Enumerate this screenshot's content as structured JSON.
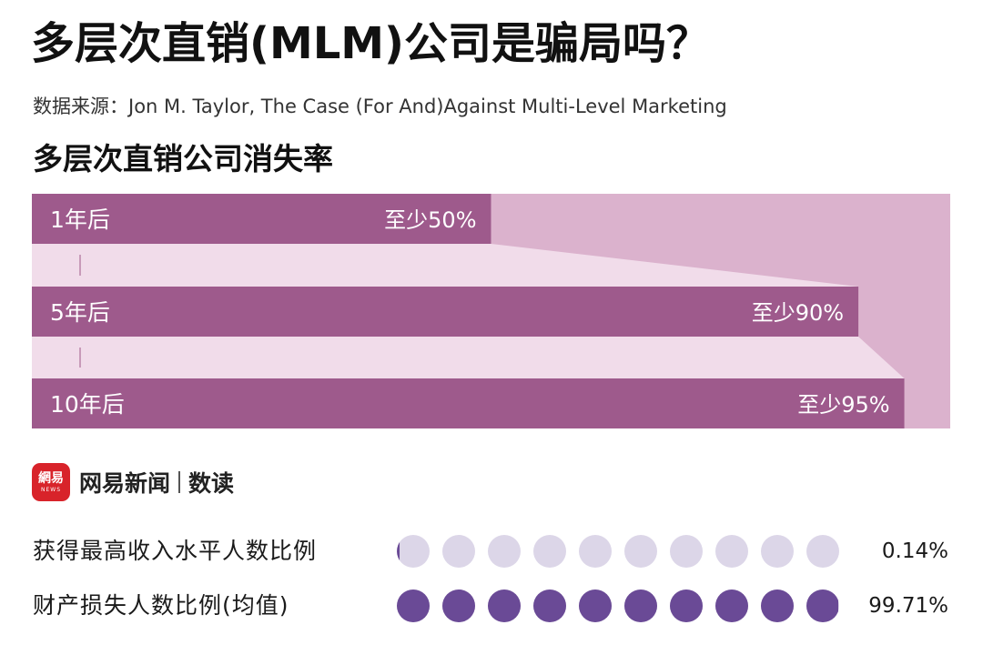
{
  "header": {
    "title": "多层次直销(MLM)公司是骗局吗？",
    "source": "数据来源：Jon M. Taylor, The Case (For And)Against Multi-Level Marketing"
  },
  "chart_data": {
    "type": "bar",
    "title": "多层次直销公司消失率",
    "categories": [
      "1年后",
      "5年后",
      "10年后"
    ],
    "values": [
      50,
      90,
      95
    ],
    "value_labels": [
      "至少50%",
      "至少90%",
      "至少95%"
    ],
    "unit": "%",
    "ylim": [
      0,
      100
    ],
    "colors": {
      "bar": "#9e5a8c",
      "track": "#dbb2cd",
      "connector": "#f1dcea",
      "connector_tick": "#c89ab9"
    }
  },
  "brand": {
    "logo_main": "網易",
    "logo_sub": "NEWS",
    "name": "网易新闻",
    "column": "数读",
    "logo_color": "#d8232a"
  },
  "stats": [
    {
      "label": "获得最高收入水平人数比例",
      "value": 0.14,
      "display": "0.14%",
      "dot_count": 10,
      "fill_color": "#6a4a96",
      "empty_color": "#dcd6e8"
    },
    {
      "label": "财产损失人数比例(均值)",
      "value": 99.71,
      "display": "99.71%",
      "dot_count": 10,
      "fill_color": "#6a4a96",
      "empty_color": "#dcd6e8"
    }
  ]
}
